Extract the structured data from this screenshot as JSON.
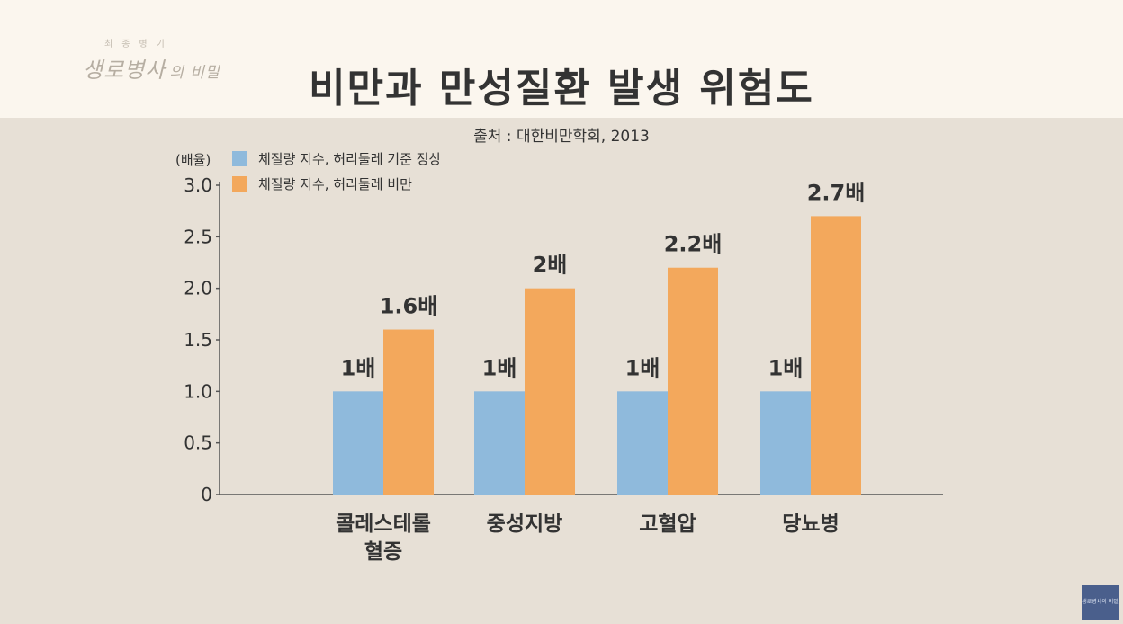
{
  "header": {
    "logo_small": "최종병기",
    "logo_main": "생로병사",
    "logo_tail": "의 비밀",
    "title": "비만과 만성질환 발생 위험도",
    "source": "출처 : 대한비만학회, 2013"
  },
  "colors": {
    "normal": "#8fbadc",
    "obese": "#f3a85c",
    "axis": "#555555",
    "text": "#333333"
  },
  "chart_data": {
    "type": "bar",
    "title": "비만과 만성질환 발생 위험도",
    "subtitle": "출처 : 대한비만학회, 2013",
    "ylabel": "(배율)",
    "xlabel": "",
    "ylim": [
      0,
      3.0
    ],
    "yticks": [
      {
        "value": 0,
        "label": "0"
      },
      {
        "value": 0.5,
        "label": "0.5"
      },
      {
        "value": 1.0,
        "label": "1.0"
      },
      {
        "value": 1.5,
        "label": "1.5"
      },
      {
        "value": 2.0,
        "label": "2.0"
      },
      {
        "value": 2.5,
        "label": "2.5"
      },
      {
        "value": 3.0,
        "label": "3.0"
      }
    ],
    "grid": false,
    "legend_position": "top-left",
    "categories": [
      {
        "lines": [
          "콜레스테롤",
          "혈증"
        ]
      },
      {
        "lines": [
          "중성지방"
        ]
      },
      {
        "lines": [
          "고혈압"
        ]
      },
      {
        "lines": [
          "당뇨병"
        ]
      }
    ],
    "series": [
      {
        "name": "체질량 지수, 허리둘레 기준 정상",
        "values": [
          1,
          1,
          1,
          1
        ],
        "labels": [
          "1배",
          "1배",
          "1배",
          "1배"
        ]
      },
      {
        "name": "체질량 지수, 허리둘레 비만",
        "values": [
          1.6,
          2.0,
          2.2,
          2.7
        ],
        "labels": [
          "1.6배",
          "2배",
          "2.2배",
          "2.7배"
        ]
      }
    ]
  },
  "corner_badge": "생로병사의 비밀"
}
